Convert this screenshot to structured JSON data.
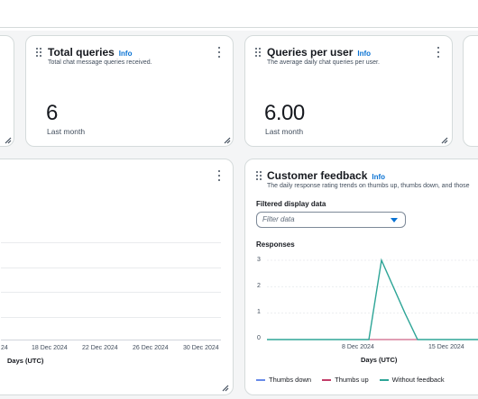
{
  "cards": {
    "total_queries": {
      "title": "Total queries",
      "info": "Info",
      "description": "Total chat message queries received.",
      "value": "6",
      "period": "Last month"
    },
    "queries_per_user": {
      "title": "Queries per user",
      "info": "Info",
      "description": "The average daily chat queries per user.",
      "value": "6.00",
      "period": "Last month"
    }
  },
  "left_chart": {
    "x_ticks": [
      "24",
      "18 Dec 2024",
      "22 Dec 2024",
      "26 Dec 2024",
      "30 Dec 2024"
    ],
    "x_axis_title": "Days (UTC)"
  },
  "feedback": {
    "title": "Customer feedback",
    "info": "Info",
    "description": "The daily response rating trends on thumbs up, thumbs down, and those",
    "filter_label": "Filtered display data",
    "filter_placeholder": "Filter data",
    "y_axis_title": "Responses",
    "x_axis_title": "Days (UTC)",
    "legend": [
      {
        "name": "Thumbs down",
        "color": "#688ae8"
      },
      {
        "name": "Thumbs up",
        "color": "#c33d69"
      },
      {
        "name": "Without feedback",
        "color": "#2ea597"
      }
    ]
  },
  "chart_data": {
    "type": "line",
    "y_ticks": [
      "3",
      "2",
      "1",
      "0"
    ],
    "x_ticks": [
      "8 Dec 2024",
      "15 Dec 2024"
    ],
    "ylim": [
      0,
      3
    ],
    "x": [
      "2 Dec 2024",
      "5 Dec 2024",
      "8 Dec 2024",
      "9 Dec 2024",
      "10 Dec 2024",
      "11 Dec 2024",
      "12 Dec 2024",
      "13 Dec 2024",
      "14 Dec 2024",
      "15 Dec 2024",
      "16 Dec 2024"
    ],
    "series": [
      {
        "name": "Thumbs down",
        "color": "#688ae8",
        "values": [
          0,
          0,
          0,
          0,
          0,
          0,
          0,
          0,
          0,
          0,
          0
        ]
      },
      {
        "name": "Thumbs up",
        "color": "#c33d69",
        "values": [
          0,
          0,
          0,
          0,
          0,
          0,
          0,
          0,
          0,
          0,
          0
        ]
      },
      {
        "name": "Without feedback",
        "color": "#2ea597",
        "values": [
          0,
          0,
          0,
          3,
          2,
          1,
          0,
          0,
          0,
          0,
          0
        ]
      }
    ]
  }
}
